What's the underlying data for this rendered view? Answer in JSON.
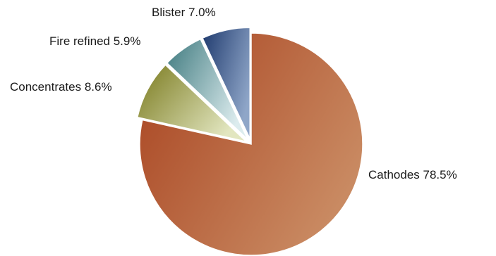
{
  "chart_data": {
    "type": "pie",
    "title": "",
    "start_angle_deg": 0,
    "exploded": [
      "Blister",
      "Fire refined",
      "Concentrates"
    ],
    "series": [
      {
        "name": "Cathodes",
        "value": 78.5,
        "label": "Cathodes 78.5%",
        "color_dark": "#a8421f",
        "color_light": "#c98a62"
      },
      {
        "name": "Concentrates",
        "value": 8.6,
        "label": "Concentrates 8.6%",
        "color_dark": "#7a7a1e",
        "color_light": "#e2e6c0"
      },
      {
        "name": "Fire refined",
        "value": 5.9,
        "label": "Fire refined 5.9%",
        "color_dark": "#3f7a7f",
        "color_light": "#dcecee"
      },
      {
        "name": "Blister",
        "value": 7.0,
        "label": "Blister 7.0%",
        "color_dark": "#1f3a6e",
        "color_light": "#8fa6c8"
      }
    ]
  }
}
